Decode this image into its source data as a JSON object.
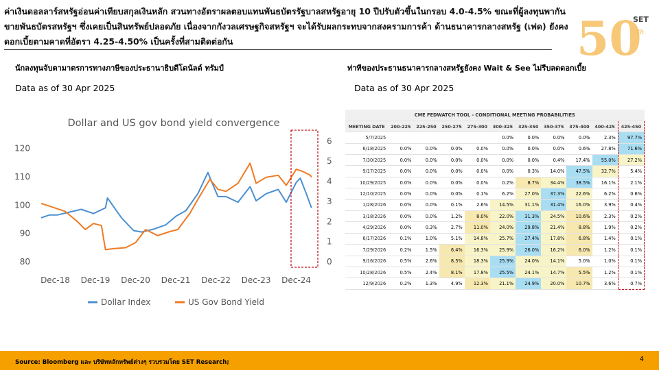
{
  "slide": {
    "headline": "ค่าเงินดอลลาร์สหรัฐอ่อนค่าเทียบสกุลเงินหลัก สวนทางอัตราผลตอบแทนพันธบัตรรัฐบาลสหรัฐอายุ 10 ปีปรับตัวขึ้นในกรอบ 4.0-4.5% ขณะที่ผู้ลงทุนพากันขายพันธบัตรสหรัฐฯ ซึ่งเคยเป็นสินทรัพย์ปลอดภัย เนื่องจากกังวลเศรษฐกิจสหรัฐฯ จะได้รับผลกระทบจากสงครามการค้า ด้านธนาคารกลางสหรัฐ (เฟด) ยังคงดอกเบี้ยตามคาดที่อัตรา 4.25-4.50% เป็นครั้งที่สามติดต่อกัน",
    "left_subtitle": "นักลงทุนจับตามาตรการทางภาษีของประธานาธิบดีโดนัลด์ ทรัมป์",
    "right_subtitle": "ท่าทีของประธานธนาคารกลางสหรัฐยังคง Wait & See ไม่รีบลดดอกเบี้ย",
    "left_asof": "Data as of 30 Apr 2025",
    "right_asof": "Data as of 30 Apr 2025",
    "logo_text": "SET",
    "logo_number": "50",
    "logo_suffix": "th",
    "source": "Source: Bloomberg และ บริษัทหลักทรัพย์ต่างๆ รวบรวมโดย SET Research;",
    "page_number": "4",
    "colors": {
      "footer": "#f6a000",
      "dollar": "#4a8fd0",
      "bond": "#ef7b22",
      "highlight": "#c0161c",
      "logo": "#f3b64c"
    }
  },
  "chart_data": [
    {
      "type": "line",
      "title": "Dollar and US gov bond yield convergence",
      "x_tick_labels": [
        "Dec-18",
        "Dec-19",
        "Dec-20",
        "Dec-21",
        "Dec-22",
        "Dec-23",
        "Dec-24"
      ],
      "x_range": [
        2018.6,
        2025.35
      ],
      "left_axis": {
        "ticks": [
          80,
          90,
          100,
          110,
          120
        ],
        "range": [
          80,
          124
        ]
      },
      "right_axis": {
        "ticks": [
          0,
          1,
          2,
          3,
          4,
          5,
          6
        ],
        "range": [
          0,
          6.2
        ]
      },
      "legend_position": "bottom",
      "highlight_box": "Dec-24 to Apr-25",
      "series": [
        {
          "name": "Dollar Index",
          "axis": "left",
          "color": "#4a8fd0",
          "x": [
            2018.6,
            2018.8,
            2019.0,
            2019.3,
            2019.6,
            2019.9,
            2020.2,
            2020.25,
            2020.4,
            2020.6,
            2020.9,
            2021.1,
            2021.4,
            2021.7,
            2021.95,
            2022.2,
            2022.5,
            2022.75,
            2022.85,
            2023.0,
            2023.2,
            2023.5,
            2023.8,
            2023.95,
            2024.2,
            2024.5,
            2024.7,
            2024.95,
            2025.05,
            2025.2,
            2025.33
          ],
          "y": [
            95.5,
            96.5,
            96.5,
            97.5,
            98.5,
            97,
            99,
            102.5,
            99.5,
            95.5,
            91,
            90.5,
            91.5,
            93,
            96,
            98,
            104,
            111.5,
            108,
            103,
            103,
            101,
            106.5,
            101.5,
            104,
            105.5,
            101,
            108,
            109.5,
            104,
            99
          ]
        },
        {
          "name": "US Gov Bond Yield",
          "axis": "right",
          "color": "#ef7b22",
          "x": [
            2018.6,
            2018.9,
            2019.2,
            2019.5,
            2019.7,
            2019.9,
            2020.1,
            2020.2,
            2020.4,
            2020.7,
            2020.95,
            2021.2,
            2021.5,
            2021.8,
            2022.0,
            2022.3,
            2022.5,
            2022.8,
            2023.0,
            2023.2,
            2023.5,
            2023.8,
            2023.95,
            2024.2,
            2024.5,
            2024.7,
            2024.95,
            2025.1,
            2025.3,
            2025.33
          ],
          "y": [
            2.9,
            2.7,
            2.5,
            2.0,
            1.6,
            1.9,
            1.8,
            0.6,
            0.65,
            0.7,
            0.95,
            1.6,
            1.3,
            1.5,
            1.6,
            2.4,
            3.1,
            4.1,
            3.6,
            3.5,
            3.9,
            4.9,
            3.9,
            4.2,
            4.3,
            3.8,
            4.6,
            4.5,
            4.3,
            4.2
          ]
        }
      ]
    },
    {
      "type": "table",
      "title": "CME FEDWATCH TOOL - CONDITIONAL MEETING PROBABILITIES",
      "columns": [
        "MEETING DATE",
        "200-225",
        "225-250",
        "250-275",
        "275-300",
        "300-325",
        "325-350",
        "350-375",
        "375-400",
        "400-425",
        "425-450"
      ],
      "rows": [
        [
          "5/7/2025",
          "",
          "",
          "",
          "",
          "0.0%",
          "0.0%",
          "0.0%",
          "0.0%",
          "2.3%",
          "97.7%"
        ],
        [
          "6/18/2025",
          "0.0%",
          "0.0%",
          "0.0%",
          "0.0%",
          "0.0%",
          "0.0%",
          "0.0%",
          "0.6%",
          "27.8%",
          "71.6%"
        ],
        [
          "7/30/2025",
          "0.0%",
          "0.0%",
          "0.0%",
          "0.0%",
          "0.0%",
          "0.0%",
          "0.4%",
          "17.4%",
          "55.0%",
          "27.2%"
        ],
        [
          "9/17/2025",
          "0.0%",
          "0.0%",
          "0.0%",
          "0.0%",
          "0.0%",
          "0.3%",
          "14.0%",
          "47.5%",
          "32.7%",
          "5.4%"
        ],
        [
          "10/29/2025",
          "0.0%",
          "0.0%",
          "0.0%",
          "0.0%",
          "0.2%",
          "8.7%",
          "34.4%",
          "38.5%",
          "16.1%",
          "2.1%"
        ],
        [
          "12/10/2025",
          "0.0%",
          "0.0%",
          "0.0%",
          "0.1%",
          "6.2%",
          "27.0%",
          "37.3%",
          "22.6%",
          "6.2%",
          "0.6%"
        ],
        [
          "1/28/2026",
          "0.0%",
          "0.0%",
          "0.1%",
          "2.6%",
          "14.5%",
          "31.1%",
          "31.4%",
          "16.0%",
          "3.9%",
          "0.4%"
        ],
        [
          "3/18/2026",
          "0.0%",
          "0.0%",
          "1.2%",
          "8.0%",
          "22.0%",
          "31.3%",
          "24.5%",
          "10.6%",
          "2.3%",
          "0.2%"
        ],
        [
          "4/29/2026",
          "0.0%",
          "0.3%",
          "2.7%",
          "11.0%",
          "24.0%",
          "29.8%",
          "21.4%",
          "8.8%",
          "1.9%",
          "0.2%"
        ],
        [
          "6/17/2026",
          "0.1%",
          "1.0%",
          "5.1%",
          "14.8%",
          "25.7%",
          "27.4%",
          "17.8%",
          "6.8%",
          "1.4%",
          "0.1%"
        ],
        [
          "7/29/2026",
          "0.2%",
          "1.5%",
          "6.4%",
          "16.3%",
          "25.9%",
          "26.0%",
          "16.2%",
          "6.0%",
          "1.2%",
          "0.1%"
        ],
        [
          "9/16/2026",
          "0.5%",
          "2.6%",
          "8.5%",
          "18.3%",
          "25.9%",
          "24.0%",
          "14.1%",
          "5.0%",
          "1.0%",
          "0.1%"
        ],
        [
          "10/28/2026",
          "0.5%",
          "2.4%",
          "8.1%",
          "17.8%",
          "25.5%",
          "24.1%",
          "14.7%",
          "5.5%",
          "1.2%",
          "0.1%"
        ],
        [
          "12/9/2026",
          "0.2%",
          "1.3%",
          "4.9%",
          "12.3%",
          "21.1%",
          "24.9%",
          "20.0%",
          "10.7%",
          "3.6%",
          "0.7%"
        ]
      ],
      "highlight_column": "425-450",
      "row_max_cell_color": "#a9ddf2",
      "near_max_cell_color": "#f8f4c8"
    }
  ]
}
